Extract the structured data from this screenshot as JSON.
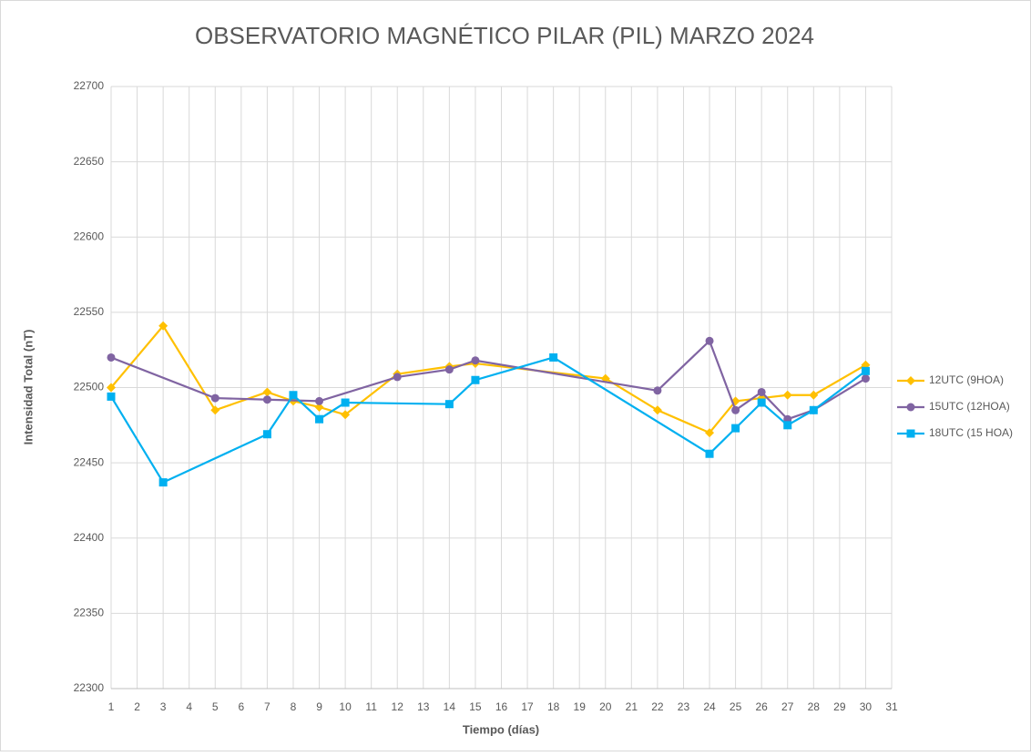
{
  "chart_data": {
    "type": "line",
    "title": "OBSERVATORIO MAGNÉTICO PILAR (PIL) MARZO 2024",
    "x_label": "Tiempo (días)",
    "y_label": "Intensidad Total (nT)",
    "xlim": [
      1,
      31
    ],
    "xticks": [
      1,
      2,
      3,
      4,
      5,
      6,
      7,
      8,
      9,
      10,
      11,
      12,
      13,
      14,
      15,
      16,
      17,
      18,
      19,
      20,
      21,
      22,
      23,
      24,
      25,
      26,
      27,
      28,
      29,
      30,
      31
    ],
    "ylim": [
      22300,
      22700
    ],
    "yticks": [
      22300,
      22350,
      22400,
      22450,
      22500,
      22550,
      22600,
      22650,
      22700
    ],
    "grid": true,
    "legend": "right",
    "series": [
      {
        "name": "12UTC (9HOA)",
        "color": "#FFC000",
        "marker": "diamond",
        "x": [
          1,
          3,
          5,
          7,
          8,
          9,
          10,
          12,
          14,
          15,
          20,
          22,
          24,
          25,
          26,
          27,
          28,
          30
        ],
        "values": [
          22500,
          22541,
          22485,
          22497,
          22491,
          22487,
          22482,
          22509,
          22514,
          22516,
          22506,
          22485,
          22470,
          22491,
          22493,
          22495,
          22495,
          22515
        ]
      },
      {
        "name": "15UTC (12HOA)",
        "color": "#8064A2",
        "marker": "circle",
        "x": [
          1,
          5,
          7,
          9,
          12,
          14,
          15,
          22,
          24,
          25,
          26,
          27,
          28,
          30
        ],
        "values": [
          22520,
          22493,
          22492,
          22491,
          22507,
          22512,
          22518,
          22498,
          22531,
          22485,
          22497,
          22479,
          22485,
          22506
        ]
      },
      {
        "name": "18UTC (15 HOA)",
        "color": "#00B0F0",
        "marker": "square",
        "x": [
          1,
          3,
          7,
          8,
          9,
          10,
          14,
          15,
          18,
          24,
          25,
          26,
          27,
          28,
          30
        ],
        "values": [
          22494,
          22437,
          22469,
          22495,
          22479,
          22490,
          22489,
          22505,
          22520,
          22456,
          22473,
          22490,
          22475,
          22485,
          22511
        ]
      }
    ]
  }
}
